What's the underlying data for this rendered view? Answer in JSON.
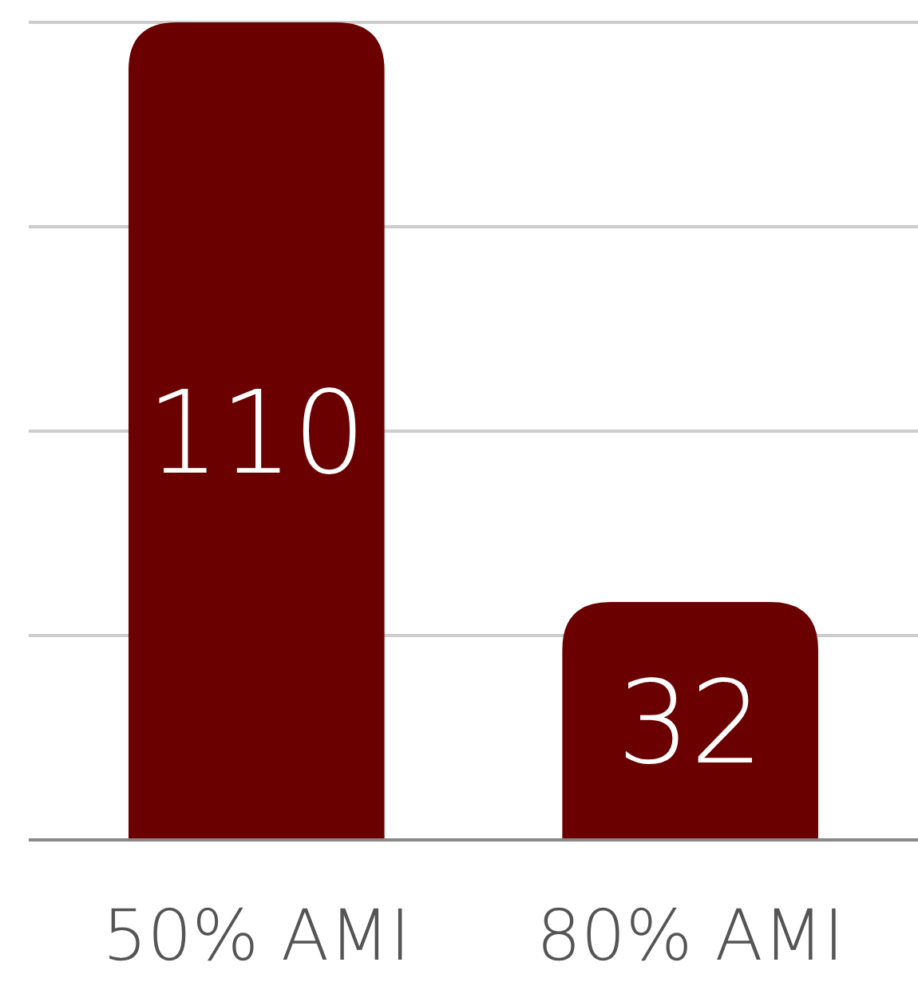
{
  "chart_data": {
    "type": "bar",
    "categories": [
      "50% AMI",
      "80% AMI"
    ],
    "values": [
      110,
      32
    ],
    "color": "#6b0000",
    "data_labels": true,
    "ylim": [
      0,
      110
    ],
    "yticks": [
      {
        "value": 0,
        "label": null
      },
      {
        "value": 27.5,
        "label": null
      },
      {
        "value": 55,
        "label": null
      },
      {
        "value": 82.5,
        "label": null
      },
      {
        "value": 110,
        "label": null
      }
    ],
    "grid": "y",
    "tick_labels": "x"
  }
}
